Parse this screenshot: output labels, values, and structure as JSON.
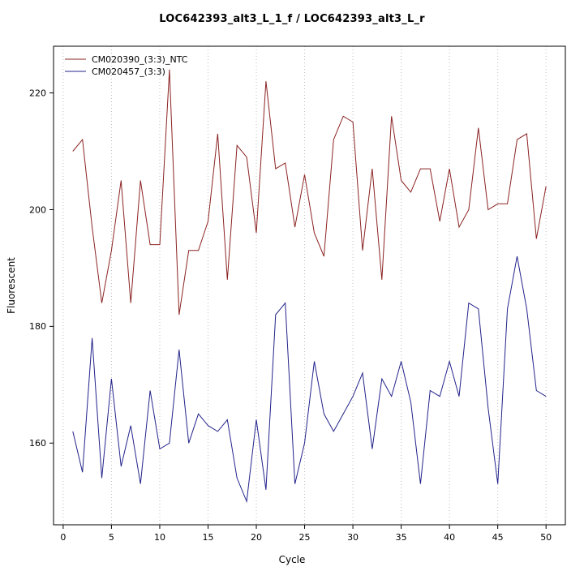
{
  "title": "LOC642393_alt3_L_1_f / LOC642393_alt3_L_r",
  "x_axis": {
    "label": "Cycle",
    "ticks": [
      0,
      5,
      10,
      15,
      20,
      25,
      30,
      35,
      40,
      45,
      50
    ]
  },
  "y_axis": {
    "label": "Fluorescent",
    "ticks": [
      160,
      180,
      200,
      220
    ]
  },
  "legend": {
    "position": "top-left",
    "entries": [
      {
        "label": "CM020390_(3:3)_NTC",
        "color": "#8b2222"
      },
      {
        "label": "CM020457_(3:3)",
        "color": "#22228b"
      }
    ]
  },
  "colors": {
    "series1": "#8b2222",
    "series2": "#22228b",
    "grid": "#bdbdbd",
    "axis": "#000000",
    "background": "#ffffff"
  },
  "chart_data": {
    "type": "line",
    "title": "LOC642393_alt3_L_1_f / LOC642393_alt3_L_r",
    "xlabel": "Cycle",
    "ylabel": "Fluorescent",
    "xlim": [
      -1,
      52
    ],
    "ylim": [
      146,
      228
    ],
    "xticks": [
      0,
      5,
      10,
      15,
      20,
      25,
      30,
      35,
      40,
      45,
      50
    ],
    "yticks": [
      160,
      180,
      200,
      220
    ],
    "grid": "vertical-dotted",
    "legend_position": "top-left",
    "x": [
      1,
      2,
      3,
      4,
      5,
      6,
      7,
      8,
      9,
      10,
      11,
      12,
      13,
      14,
      15,
      16,
      17,
      18,
      19,
      20,
      21,
      22,
      23,
      24,
      25,
      26,
      27,
      28,
      29,
      30,
      31,
      32,
      33,
      34,
      35,
      36,
      37,
      38,
      39,
      40,
      41,
      42,
      43,
      44,
      45,
      46,
      47,
      48,
      49,
      50
    ],
    "series": [
      {
        "name": "CM020390_(3:3)_NTC",
        "color": "#8b2222",
        "values": [
          210,
          212,
          197,
          184,
          193,
          205,
          184,
          205,
          194,
          194,
          224,
          182,
          193,
          193,
          198,
          213,
          188,
          211,
          209,
          196,
          222,
          207,
          208,
          197,
          206,
          196,
          192,
          212,
          216,
          215,
          193,
          207,
          188,
          216,
          205,
          203,
          207,
          207,
          198,
          207,
          197,
          200,
          214,
          200,
          201,
          201,
          212,
          213,
          195,
          204
        ]
      },
      {
        "name": "CM020457_(3:3)",
        "color": "#22228b",
        "values": [
          162,
          155,
          178,
          154,
          171,
          156,
          163,
          153,
          169,
          159,
          160,
          176,
          160,
          165,
          163,
          162,
          164,
          154,
          150,
          164,
          152,
          182,
          184,
          153,
          160,
          174,
          165,
          162,
          165,
          168,
          172,
          159,
          171,
          168,
          174,
          167,
          153,
          169,
          168,
          174,
          168,
          184,
          183,
          166,
          153,
          183,
          192,
          183,
          169,
          168
        ]
      }
    ]
  }
}
